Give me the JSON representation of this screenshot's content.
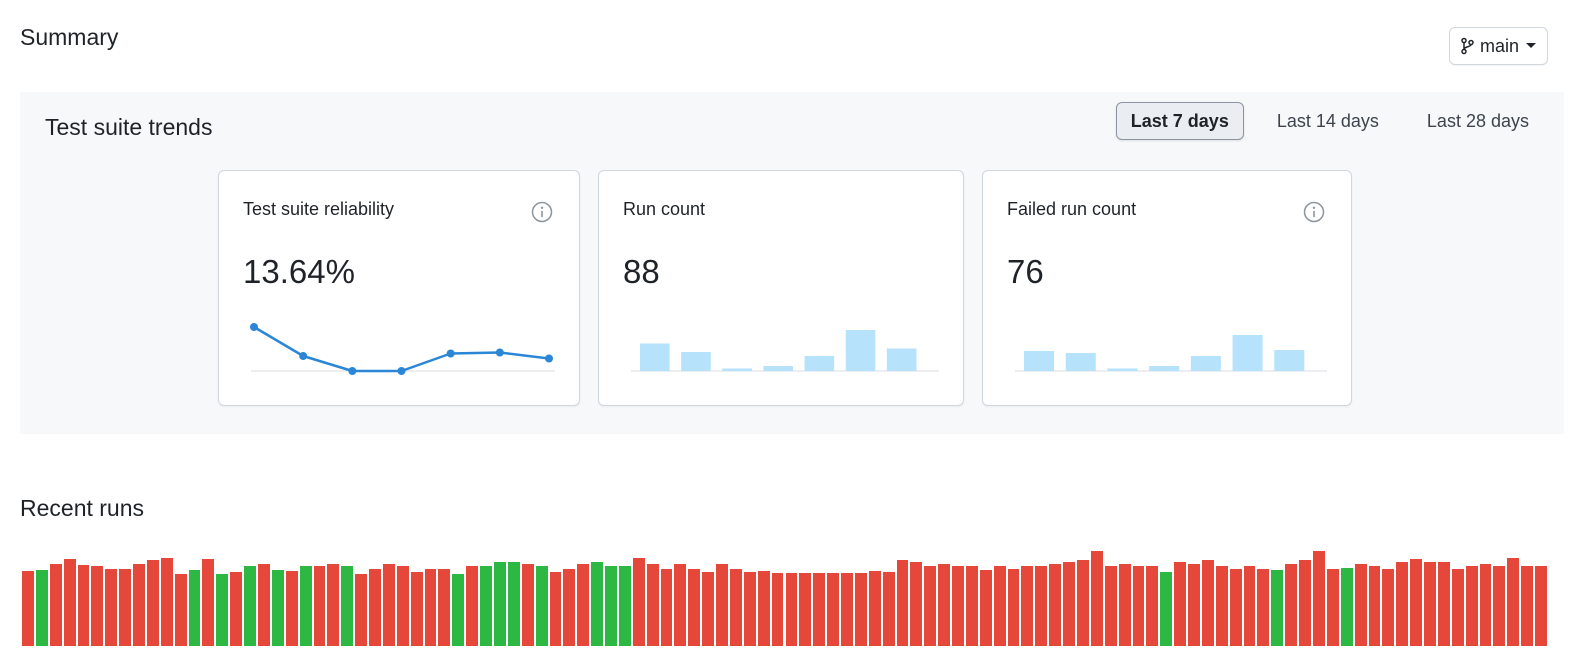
{
  "header": {
    "title": "Summary",
    "branch": "main",
    "branch_icon": "git-branch-icon",
    "caret_icon": "caret-down-icon"
  },
  "trends": {
    "title": "Test suite trends",
    "ranges": [
      {
        "label": "Last 7 days",
        "active": true
      },
      {
        "label": "Last 14 days",
        "active": false
      },
      {
        "label": "Last 28 days",
        "active": false
      }
    ],
    "cards": [
      {
        "title": "Test suite reliability",
        "value": "13.64%",
        "info": true,
        "chart": {
          "type": "line",
          "values": [
            0.88,
            0.3,
            0.0,
            0.0,
            0.35,
            0.37,
            0.25
          ],
          "color": "#2b86d6"
        }
      },
      {
        "title": "Run count",
        "value": "88",
        "info": false,
        "chart": {
          "type": "bar",
          "values": [
            0.55,
            0.38,
            0.05,
            0.1,
            0.3,
            0.82,
            0.45
          ],
          "color": "#b6e3fb"
        }
      },
      {
        "title": "Failed run count",
        "value": "76",
        "info": true,
        "chart": {
          "type": "bar",
          "values": [
            0.4,
            0.36,
            0.05,
            0.1,
            0.3,
            0.72,
            0.42
          ],
          "color": "#b6e3fb"
        }
      }
    ]
  },
  "recent": {
    "title": "Recent runs",
    "colors": {
      "fail": "#e5483a",
      "pass": "#2db843"
    },
    "runs": [
      {
        "s": "fail",
        "h": 75
      },
      {
        "s": "pass",
        "h": 76
      },
      {
        "s": "fail",
        "h": 82
      },
      {
        "s": "fail",
        "h": 87
      },
      {
        "s": "fail",
        "h": 81
      },
      {
        "s": "fail",
        "h": 80
      },
      {
        "s": "fail",
        "h": 77
      },
      {
        "s": "fail",
        "h": 77
      },
      {
        "s": "fail",
        "h": 82
      },
      {
        "s": "fail",
        "h": 86
      },
      {
        "s": "fail",
        "h": 88
      },
      {
        "s": "fail",
        "h": 72
      },
      {
        "s": "pass",
        "h": 76
      },
      {
        "s": "fail",
        "h": 87
      },
      {
        "s": "pass",
        "h": 72
      },
      {
        "s": "fail",
        "h": 74
      },
      {
        "s": "pass",
        "h": 80
      },
      {
        "s": "fail",
        "h": 82
      },
      {
        "s": "pass",
        "h": 76
      },
      {
        "s": "fail",
        "h": 75
      },
      {
        "s": "pass",
        "h": 80
      },
      {
        "s": "fail",
        "h": 80
      },
      {
        "s": "fail",
        "h": 82
      },
      {
        "s": "pass",
        "h": 80
      },
      {
        "s": "fail",
        "h": 72
      },
      {
        "s": "fail",
        "h": 77
      },
      {
        "s": "fail",
        "h": 82
      },
      {
        "s": "fail",
        "h": 80
      },
      {
        "s": "fail",
        "h": 74
      },
      {
        "s": "fail",
        "h": 77
      },
      {
        "s": "fail",
        "h": 77
      },
      {
        "s": "pass",
        "h": 72
      },
      {
        "s": "fail",
        "h": 80
      },
      {
        "s": "pass",
        "h": 80
      },
      {
        "s": "pass",
        "h": 84
      },
      {
        "s": "pass",
        "h": 84
      },
      {
        "s": "fail",
        "h": 82
      },
      {
        "s": "pass",
        "h": 80
      },
      {
        "s": "fail",
        "h": 74
      },
      {
        "s": "fail",
        "h": 77
      },
      {
        "s": "fail",
        "h": 82
      },
      {
        "s": "pass",
        "h": 84
      },
      {
        "s": "pass",
        "h": 80
      },
      {
        "s": "pass",
        "h": 80
      },
      {
        "s": "fail",
        "h": 88
      },
      {
        "s": "fail",
        "h": 82
      },
      {
        "s": "fail",
        "h": 77
      },
      {
        "s": "fail",
        "h": 82
      },
      {
        "s": "fail",
        "h": 77
      },
      {
        "s": "fail",
        "h": 74
      },
      {
        "s": "fail",
        "h": 82
      },
      {
        "s": "fail",
        "h": 77
      },
      {
        "s": "fail",
        "h": 74
      },
      {
        "s": "fail",
        "h": 75
      },
      {
        "s": "fail",
        "h": 73
      },
      {
        "s": "fail",
        "h": 73
      },
      {
        "s": "fail",
        "h": 73
      },
      {
        "s": "fail",
        "h": 73
      },
      {
        "s": "fail",
        "h": 73
      },
      {
        "s": "fail",
        "h": 73
      },
      {
        "s": "fail",
        "h": 73
      },
      {
        "s": "fail",
        "h": 75
      },
      {
        "s": "fail",
        "h": 74
      },
      {
        "s": "fail",
        "h": 86
      },
      {
        "s": "fail",
        "h": 84
      },
      {
        "s": "fail",
        "h": 80
      },
      {
        "s": "fail",
        "h": 82
      },
      {
        "s": "fail",
        "h": 80
      },
      {
        "s": "fail",
        "h": 80
      },
      {
        "s": "fail",
        "h": 76
      },
      {
        "s": "fail",
        "h": 80
      },
      {
        "s": "fail",
        "h": 77
      },
      {
        "s": "fail",
        "h": 80
      },
      {
        "s": "fail",
        "h": 80
      },
      {
        "s": "fail",
        "h": 82
      },
      {
        "s": "fail",
        "h": 84
      },
      {
        "s": "fail",
        "h": 86
      },
      {
        "s": "fail",
        "h": 95
      },
      {
        "s": "fail",
        "h": 80
      },
      {
        "s": "fail",
        "h": 82
      },
      {
        "s": "fail",
        "h": 80
      },
      {
        "s": "fail",
        "h": 80
      },
      {
        "s": "pass",
        "h": 74
      },
      {
        "s": "fail",
        "h": 84
      },
      {
        "s": "fail",
        "h": 82
      },
      {
        "s": "fail",
        "h": 86
      },
      {
        "s": "fail",
        "h": 80
      },
      {
        "s": "fail",
        "h": 77
      },
      {
        "s": "fail",
        "h": 80
      },
      {
        "s": "fail",
        "h": 77
      },
      {
        "s": "pass",
        "h": 76
      },
      {
        "s": "fail",
        "h": 82
      },
      {
        "s": "fail",
        "h": 86
      },
      {
        "s": "fail",
        "h": 95
      },
      {
        "s": "fail",
        "h": 77
      },
      {
        "s": "pass",
        "h": 78
      },
      {
        "s": "fail",
        "h": 82
      },
      {
        "s": "fail",
        "h": 80
      },
      {
        "s": "fail",
        "h": 77
      },
      {
        "s": "fail",
        "h": 84
      },
      {
        "s": "fail",
        "h": 87
      },
      {
        "s": "fail",
        "h": 84
      },
      {
        "s": "fail",
        "h": 84
      },
      {
        "s": "fail",
        "h": 77
      },
      {
        "s": "fail",
        "h": 80
      },
      {
        "s": "fail",
        "h": 82
      },
      {
        "s": "fail",
        "h": 80
      },
      {
        "s": "fail",
        "h": 88
      },
      {
        "s": "fail",
        "h": 80
      },
      {
        "s": "fail",
        "h": 80
      }
    ]
  }
}
